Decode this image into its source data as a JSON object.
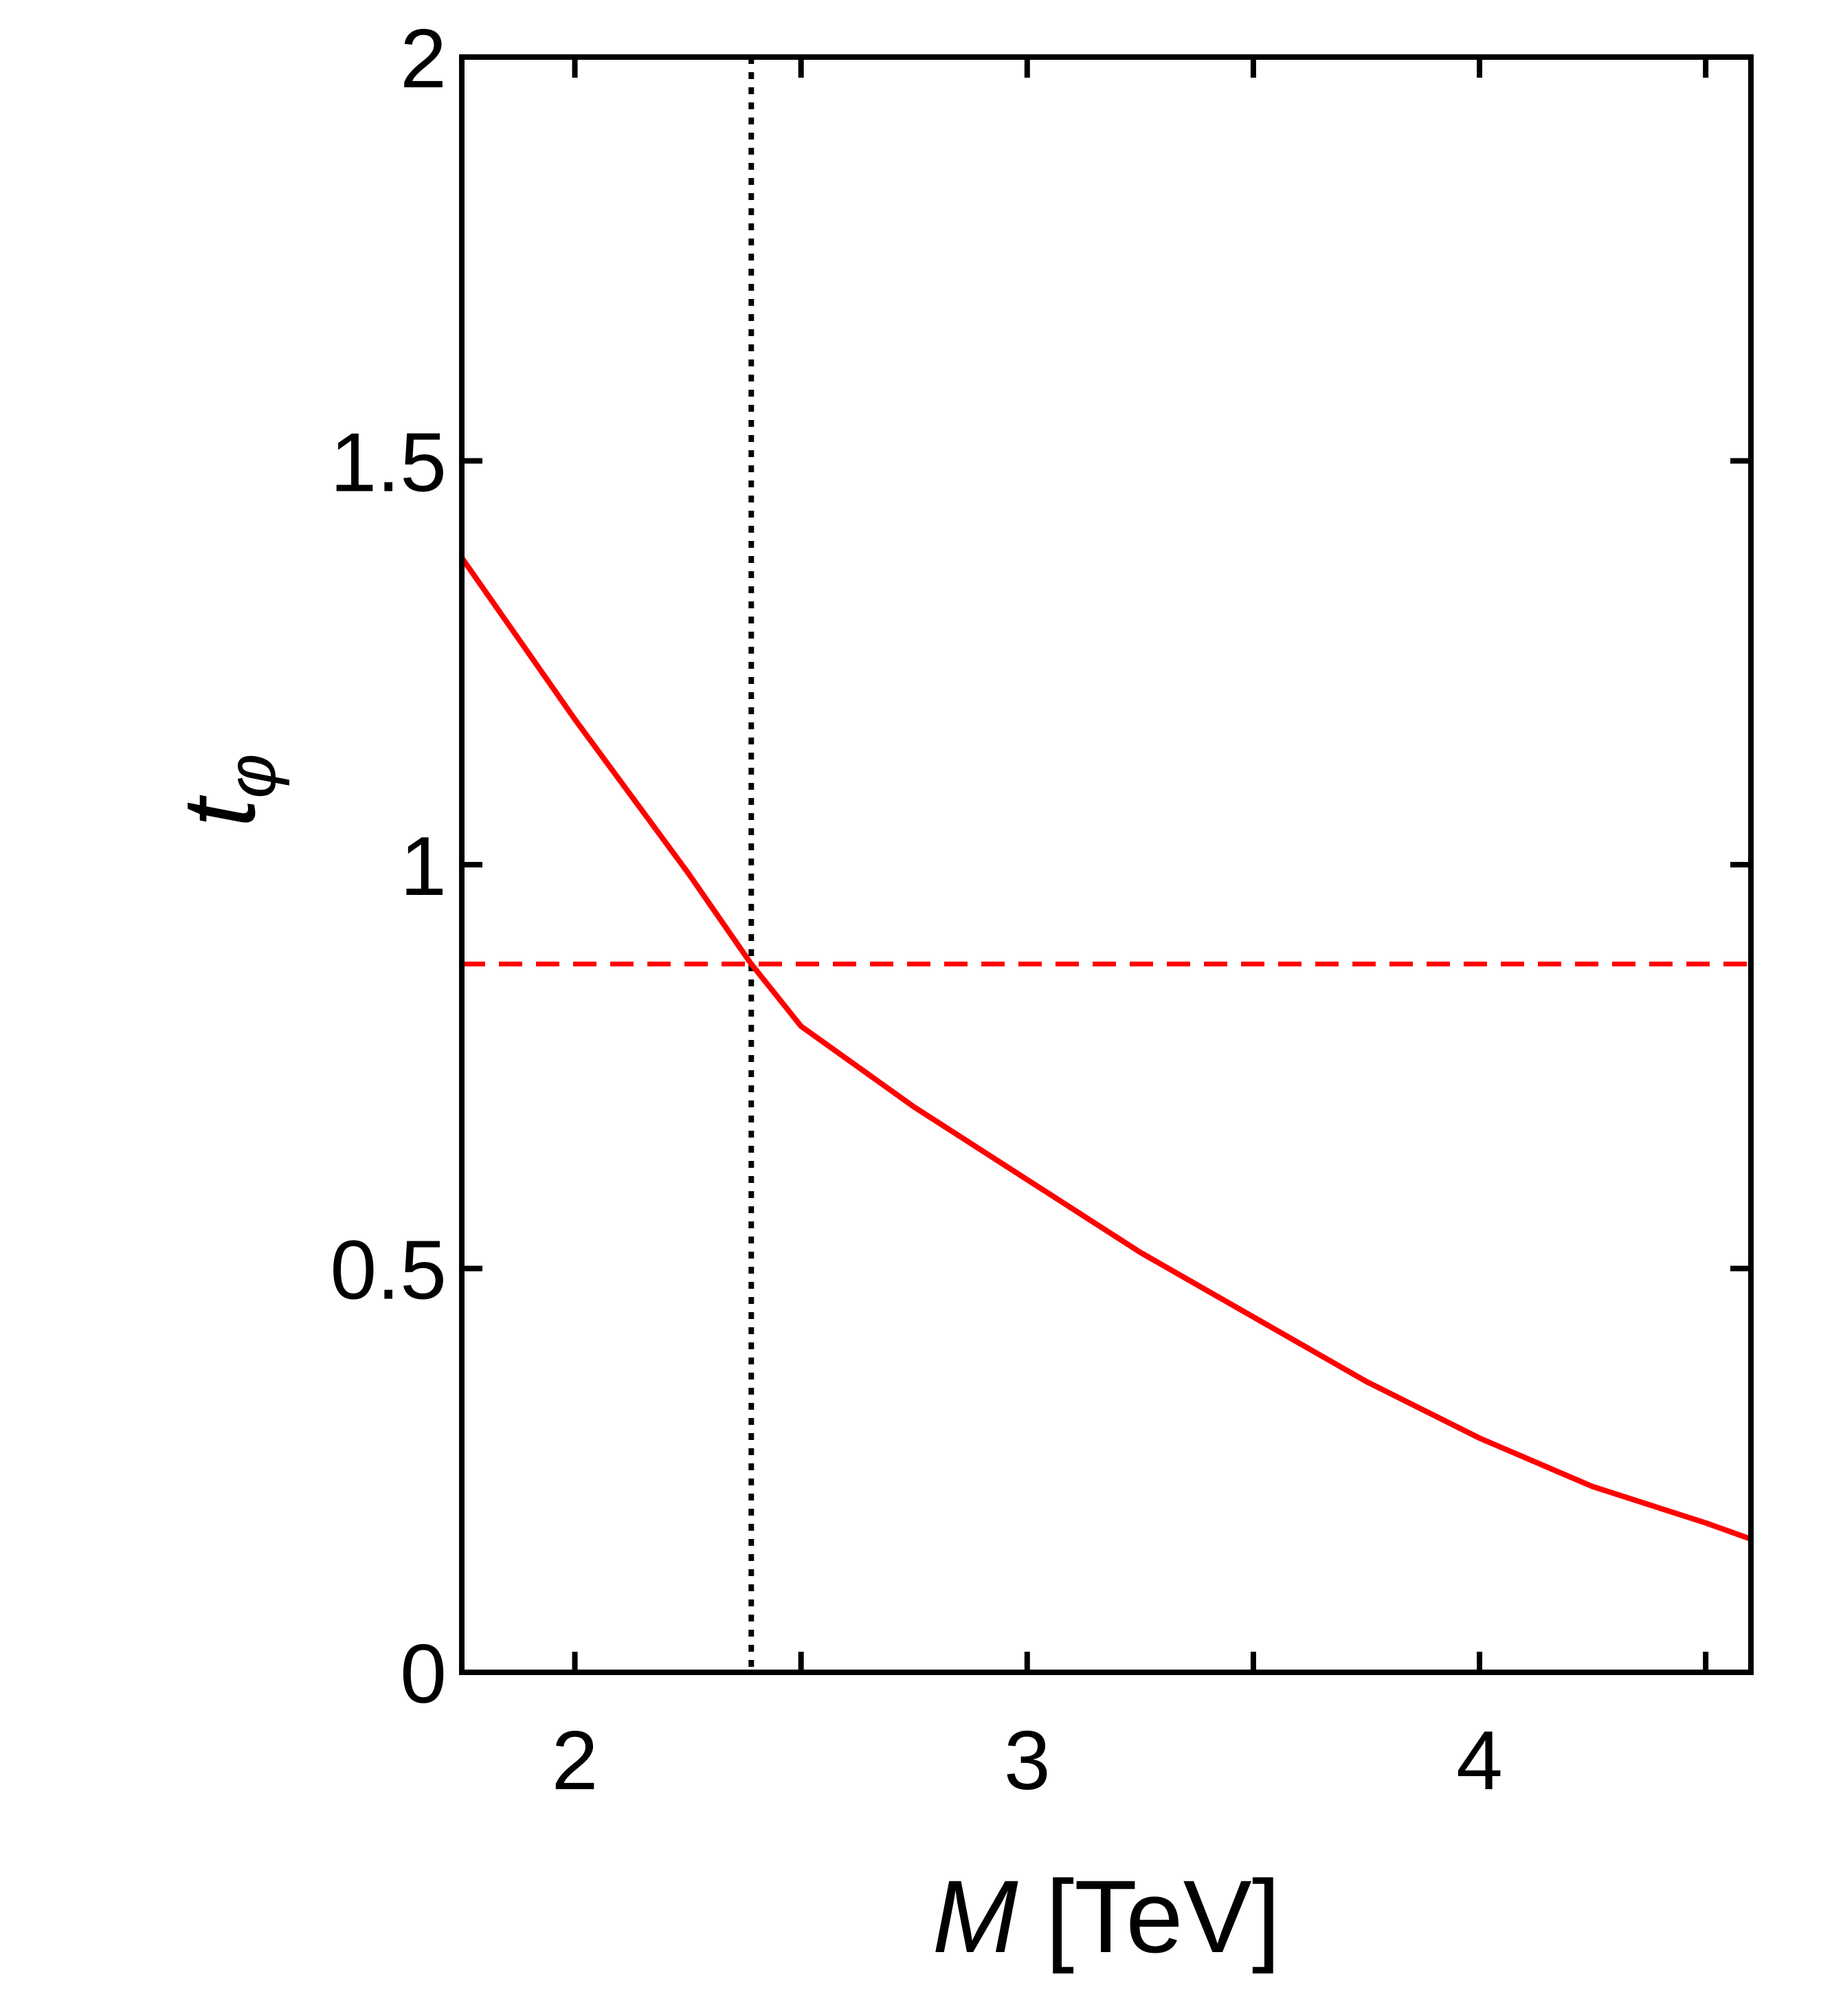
{
  "chart_data": {
    "type": "line",
    "x_label": {
      "symbol": "M",
      "unit": "[TeV]"
    },
    "y_label": {
      "symbol": "t",
      "subscript": "φ"
    },
    "x": [
      1.75,
      2.0,
      2.25,
      2.39,
      2.5,
      2.75,
      3.0,
      3.25,
      3.5,
      3.75,
      4.0,
      4.25,
      4.5,
      4.6
    ],
    "series": [
      {
        "color": "#ff0000",
        "values": [
          1.38,
          1.18,
          0.99,
          0.877,
          0.8,
          0.7,
          0.61,
          0.52,
          0.44,
          0.36,
          0.29,
          0.23,
          0.185,
          0.165
        ]
      }
    ],
    "hlines": [
      {
        "value": 0.877,
        "color": "#ff0000",
        "style": "dashed"
      }
    ],
    "vlines": [
      {
        "value": 2.39,
        "color": "#000000",
        "style": "dotted"
      }
    ],
    "xlim": [
      1.75,
      4.6
    ],
    "xticks": [
      2,
      3,
      4
    ],
    "xminor": [
      2.5,
      3.5,
      4.5
    ],
    "ylim": [
      0,
      2
    ],
    "yticks": [
      0,
      0.5,
      1,
      1.5,
      2
    ]
  }
}
